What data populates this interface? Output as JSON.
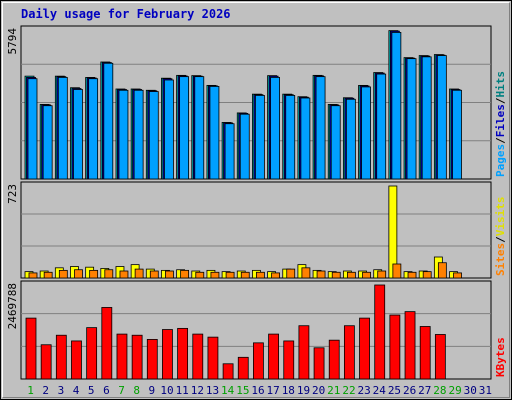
{
  "chart_data": {
    "title": "Daily usage for February 2026",
    "type": "bar",
    "days": [
      1,
      2,
      3,
      4,
      5,
      6,
      7,
      8,
      9,
      10,
      11,
      12,
      13,
      14,
      15,
      16,
      17,
      18,
      19,
      20,
      21,
      22,
      23,
      24,
      25,
      26,
      27,
      28,
      29,
      30,
      31
    ],
    "weekend_days": [
      1,
      7,
      8,
      14,
      15,
      21,
      22,
      28,
      29
    ],
    "panels": [
      {
        "ylabel_max": "5794",
        "ymax": 5794,
        "legend": [
          "Pages",
          "Files",
          "Hits"
        ],
        "legend_colors": [
          "#00a0ff",
          "#0000c0",
          "#008080"
        ],
        "series": [
          {
            "name": "Hits",
            "color": "#00c0c0",
            "values": [
              4000,
              2900,
              4000,
              3550,
              3950,
              4550,
              3500,
              3500,
              3450,
              3920,
              4030,
              4020,
              3640,
              2200,
              2570,
              3300,
              4020,
              3300,
              3200,
              4030,
              2900,
              3160,
              3640,
              4140,
              5770,
              4720,
              4800,
              4840,
              3500
            ]
          },
          {
            "name": "Files",
            "color": "#0000c0",
            "values": [
              3950,
              2880,
              3980,
              3520,
              3930,
              4530,
              3480,
              3480,
              3430,
              3900,
              4010,
              4000,
              3620,
              2180,
              2550,
              3280,
              4000,
              3280,
              3180,
              4010,
              2880,
              3140,
              3620,
              4120,
              5750,
              4700,
              4780,
              4820,
              3480
            ]
          },
          {
            "name": "Pages",
            "color": "#00a0ff",
            "values": [
              3900,
              2850,
              3950,
              3480,
              3900,
              4500,
              3450,
              3450,
              3400,
              3850,
              3980,
              3980,
              3600,
              2150,
              2520,
              3250,
              3950,
              3250,
              3150,
              3980,
              2850,
              3100,
              3580,
              4080,
              5700,
              4680,
              4750,
              4800,
              3450
            ]
          }
        ]
      },
      {
        "ylabel_max": "723",
        "ymax": 723,
        "legend": [
          "Sites",
          "/",
          "Visits"
        ],
        "legend_colors": [
          "#ff8000",
          "#000000",
          "#e0e000"
        ],
        "series": [
          {
            "name": "Visits",
            "color": "#ffff00",
            "values": [
              50,
              55,
              80,
              90,
              85,
              75,
              90,
              105,
              70,
              60,
              65,
              55,
              60,
              50,
              55,
              60,
              50,
              70,
              105,
              60,
              50,
              55,
              55,
              65,
              723,
              50,
              55,
              165,
              50
            ]
          },
          {
            "name": "Sites",
            "color": "#ff8000",
            "values": [
              40,
              45,
              60,
              65,
              60,
              65,
              55,
              70,
              55,
              55,
              60,
              45,
              45,
              45,
              45,
              45,
              40,
              70,
              80,
              55,
              45,
              45,
              45,
              55,
              110,
              45,
              50,
              120,
              40
            ]
          }
        ]
      },
      {
        "ylabel_max": "2469788",
        "ymax": 2469788,
        "legend": [
          "KBytes"
        ],
        "legend_colors": [
          "#ff0000"
        ],
        "series": [
          {
            "name": "KBytes",
            "color": "#ff0000",
            "values": [
              1600000,
              900000,
              1150000,
              1000000,
              1350000,
              1880000,
              1180000,
              1150000,
              1040000,
              1300000,
              1330000,
              1180000,
              1100000,
              400000,
              570000,
              950000,
              1180000,
              1000000,
              1400000,
              820000,
              1020000,
              1400000,
              1600000,
              2470000,
              1680000,
              1770000,
              1380000,
              1170000,
              0
            ]
          }
        ]
      }
    ],
    "grid": true
  },
  "colors": {
    "background": "#c0c0c0",
    "weekday_label": "#000080",
    "weekend_label": "#00a000"
  }
}
